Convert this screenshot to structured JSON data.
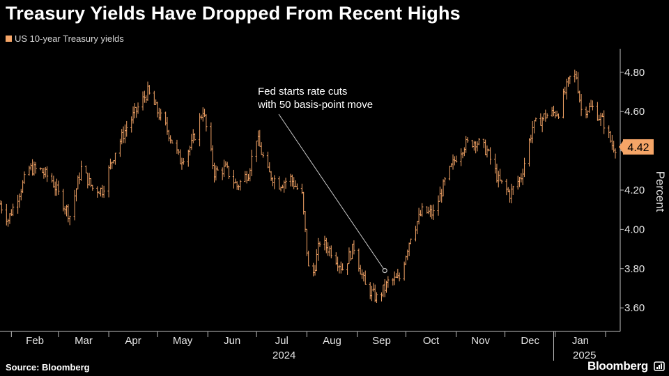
{
  "title": "Treasury Yields Have Dropped From Recent Highs",
  "source": "Source: Bloomberg",
  "brand": "Bloomberg",
  "colors": {
    "series": "#f5a567",
    "annotation_line": "#cccccc",
    "grid": "#3a3a3a",
    "badge": "#f5a567"
  },
  "chart_data": {
    "type": "bar",
    "style": "ohlc",
    "title": "Treasury Yields Have Dropped From Recent Highs",
    "ylabel": "Percent",
    "ylim": [
      3.48,
      4.92
    ],
    "yticks": [
      "3.60",
      "3.80",
      "4.00",
      "4.20",
      "4.40",
      "4.60",
      "4.80"
    ],
    "x_tick_labels": [
      "Feb",
      "Mar",
      "Apr",
      "May",
      "Jun",
      "Jul",
      "Aug",
      "Sep",
      "Oct",
      "Nov",
      "Dec",
      "Jan"
    ],
    "year_labels": [
      "2024",
      "2025"
    ],
    "xlim": [
      "2024-01-25",
      "2025-02-10"
    ],
    "grid": false,
    "legend_position": "top-left",
    "series": [
      {
        "name": "US 10-year Treasury yields",
        "last_value_label": "4.42",
        "points": [
          [
            "2024-01-25",
            4.13
          ],
          [
            "2024-01-30",
            4.05
          ],
          [
            "2024-02-05",
            4.17
          ],
          [
            "2024-02-12",
            4.31
          ],
          [
            "2024-02-19",
            4.3
          ],
          [
            "2024-02-26",
            4.25
          ],
          [
            "2024-03-01",
            4.18
          ],
          [
            "2024-03-08",
            4.07
          ],
          [
            "2024-03-15",
            4.31
          ],
          [
            "2024-03-22",
            4.21
          ],
          [
            "2024-03-28",
            4.2
          ],
          [
            "2024-04-05",
            4.4
          ],
          [
            "2024-04-12",
            4.52
          ],
          [
            "2024-04-19",
            4.62
          ],
          [
            "2024-04-25",
            4.7
          ],
          [
            "2024-05-01",
            4.6
          ],
          [
            "2024-05-08",
            4.49
          ],
          [
            "2024-05-15",
            4.35
          ],
          [
            "2024-05-22",
            4.43
          ],
          [
            "2024-05-29",
            4.61
          ],
          [
            "2024-06-05",
            4.29
          ],
          [
            "2024-06-12",
            4.31
          ],
          [
            "2024-06-19",
            4.22
          ],
          [
            "2024-06-26",
            4.29
          ],
          [
            "2024-07-01",
            4.47
          ],
          [
            "2024-07-08",
            4.29
          ],
          [
            "2024-07-15",
            4.23
          ],
          [
            "2024-07-22",
            4.26
          ],
          [
            "2024-07-29",
            4.17
          ],
          [
            "2024-08-02",
            3.8
          ],
          [
            "2024-08-05",
            3.78
          ],
          [
            "2024-08-09",
            3.94
          ],
          [
            "2024-08-16",
            3.89
          ],
          [
            "2024-08-23",
            3.8
          ],
          [
            "2024-08-30",
            3.91
          ],
          [
            "2024-09-06",
            3.71
          ],
          [
            "2024-09-13",
            3.65
          ],
          [
            "2024-09-18",
            3.7
          ],
          [
            "2024-09-20",
            3.73
          ],
          [
            "2024-09-27",
            3.75
          ],
          [
            "2024-10-04",
            3.97
          ],
          [
            "2024-10-11",
            4.09
          ],
          [
            "2024-10-18",
            4.08
          ],
          [
            "2024-10-25",
            4.24
          ],
          [
            "2024-11-01",
            4.37
          ],
          [
            "2024-11-06",
            4.43
          ],
          [
            "2024-11-13",
            4.45
          ],
          [
            "2024-11-20",
            4.4
          ],
          [
            "2024-11-27",
            4.25
          ],
          [
            "2024-12-04",
            4.18
          ],
          [
            "2024-12-11",
            4.27
          ],
          [
            "2024-12-18",
            4.52
          ],
          [
            "2024-12-26",
            4.58
          ],
          [
            "2025-01-03",
            4.6
          ],
          [
            "2025-01-10",
            4.77
          ],
          [
            "2025-01-14",
            4.78
          ],
          [
            "2025-01-17",
            4.61
          ],
          [
            "2025-01-24",
            4.62
          ],
          [
            "2025-01-31",
            4.54
          ],
          [
            "2025-02-05",
            4.43
          ],
          [
            "2025-02-07",
            4.42
          ]
        ]
      }
    ],
    "annotations": [
      {
        "text_lines": [
          "Fed starts rate cuts",
          "with 50 basis-point move"
        ],
        "date": "2024-09-18",
        "value": 3.79
      }
    ]
  }
}
